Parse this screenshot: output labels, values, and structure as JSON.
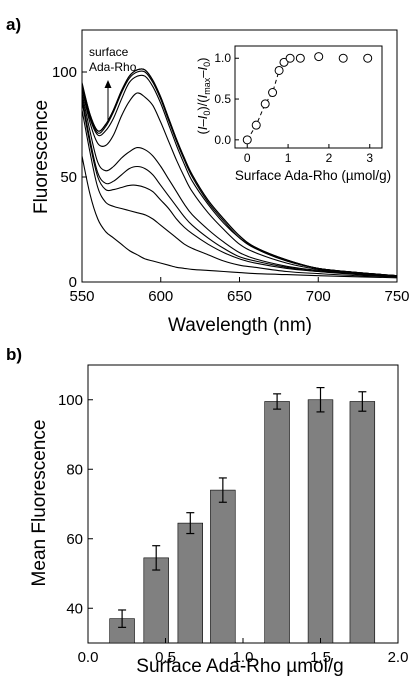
{
  "chart_data": [
    {
      "panel_label": "a)",
      "type": "line",
      "xlabel": "Wavelength (nm)",
      "ylabel": "Fluorescence",
      "xlim": [
        550,
        750
      ],
      "ylim": [
        0,
        120
      ],
      "x_ticks": [
        550,
        600,
        650,
        700,
        750
      ],
      "y_ticks": [
        0,
        50,
        100
      ],
      "annotation": {
        "line1": "surface",
        "line2": "Ada-Rho"
      },
      "x": [
        550,
        555,
        560,
        565,
        570,
        575,
        580,
        585,
        590,
        595,
        600,
        605,
        610,
        615,
        620,
        630,
        640,
        650,
        660,
        680,
        700,
        725,
        750
      ],
      "series": [
        {
          "values": [
            60,
            42,
            30,
            24,
            21,
            18,
            15,
            13,
            11,
            10,
            9,
            8,
            7,
            6.5,
            6,
            5.5,
            5,
            4.5,
            4,
            3.5,
            3,
            2.5,
            2
          ]
        },
        {
          "values": [
            82,
            62,
            45,
            38,
            36,
            35,
            34,
            33,
            32,
            30,
            27,
            24,
            21,
            18,
            16,
            13,
            10,
            8,
            7,
            5,
            4,
            3,
            2.5
          ]
        },
        {
          "values": [
            86,
            66,
            50,
            44,
            44,
            45,
            46,
            46,
            45,
            43,
            39,
            35,
            30,
            26,
            23,
            18,
            14,
            11,
            9,
            6.5,
            5,
            3.5,
            2.5
          ]
        },
        {
          "values": [
            88,
            68,
            52,
            47,
            48,
            51,
            54,
            55,
            54,
            51,
            46,
            41,
            36,
            31,
            27,
            21,
            16,
            12,
            10,
            7,
            5,
            4,
            3
          ]
        },
        {
          "values": [
            90,
            72,
            57,
            53,
            55,
            59,
            62,
            64,
            63,
            60,
            55,
            49,
            43,
            37,
            32,
            25,
            19,
            14,
            11,
            7.5,
            5.5,
            4,
            3
          ]
        },
        {
          "values": [
            92,
            76,
            66,
            65,
            70,
            79,
            86,
            90,
            88,
            84,
            76,
            67,
            58,
            50,
            43,
            33,
            25,
            18,
            14,
            9,
            6,
            4,
            3
          ]
        },
        {
          "values": [
            93,
            78,
            70,
            72,
            78,
            87,
            95,
            98,
            98,
            93,
            85,
            75,
            65,
            56,
            48,
            37,
            28,
            21,
            16,
            10,
            6.5,
            4.5,
            3
          ]
        },
        {
          "values": [
            94,
            79,
            71,
            74,
            81,
            90,
            97,
            100,
            100,
            95,
            87,
            77,
            67,
            58,
            50,
            38,
            29,
            21,
            16,
            10,
            6.5,
            4.5,
            3
          ]
        },
        {
          "values": [
            94,
            80,
            72,
            75,
            82,
            91,
            98,
            101,
            101,
            96,
            88,
            78,
            68,
            59,
            51,
            39,
            30,
            22,
            16.5,
            10.5,
            6.5,
            4.5,
            3
          ]
        },
        {
          "values": [
            95,
            80,
            72,
            75,
            82,
            91,
            98,
            101,
            101,
            96,
            88,
            78,
            68,
            59,
            51,
            39,
            30,
            22,
            16.5,
            10.5,
            6.5,
            4.5,
            3
          ]
        }
      ],
      "inset": {
        "type": "scatter",
        "xlabel": "Surface Ada-Rho (µmol/g)",
        "ylabel_parts": {
          "open": "(",
          "i1": "I",
          "minus1": "–",
          "i0a": "I",
          "sub0a": "0",
          "mid": ")/(",
          "imax": "I",
          "submax": "max",
          "minus2": "–",
          "i0b": "I",
          "sub0b": "0",
          "close": ")"
        },
        "xlim": [
          -0.3,
          3.3
        ],
        "ylim": [
          -0.1,
          1.15
        ],
        "x_ticks": [
          0,
          1,
          2,
          3
        ],
        "y_ticks": [
          0.0,
          0.5,
          1.0
        ],
        "y_tick_labels": [
          "0.0",
          "0.5",
          "1.0"
        ],
        "x": [
          0.0,
          0.22,
          0.44,
          0.62,
          0.78,
          0.9,
          1.05,
          1.3,
          1.75,
          2.35,
          2.95
        ],
        "y": [
          0.0,
          0.18,
          0.44,
          0.58,
          0.85,
          0.95,
          1.0,
          1.0,
          1.02,
          1.0,
          1.0
        ]
      }
    },
    {
      "panel_label": "b)",
      "type": "bar",
      "xlabel": "Surface Ada-Rho µmol/g",
      "ylabel": "Mean Fluorescence",
      "xlim": [
        0.0,
        2.0
      ],
      "ylim": [
        30,
        110
      ],
      "x_ticks": [
        0.0,
        0.5,
        1.0,
        1.5,
        2.0
      ],
      "x_tick_labels": [
        "0.0",
        "0.5",
        "1.0",
        "1.5",
        "2.0"
      ],
      "y_ticks": [
        40,
        60,
        80,
        100
      ],
      "bar_width": 0.16,
      "bar_color": "#808080",
      "x": [
        0.22,
        0.44,
        0.66,
        0.87,
        1.22,
        1.5,
        1.77
      ],
      "values": [
        37,
        54.5,
        64.5,
        74,
        99.5,
        100,
        99.5
      ],
      "errors": [
        2.5,
        3.5,
        3,
        3.5,
        2.2,
        3.5,
        2.8
      ]
    }
  ]
}
